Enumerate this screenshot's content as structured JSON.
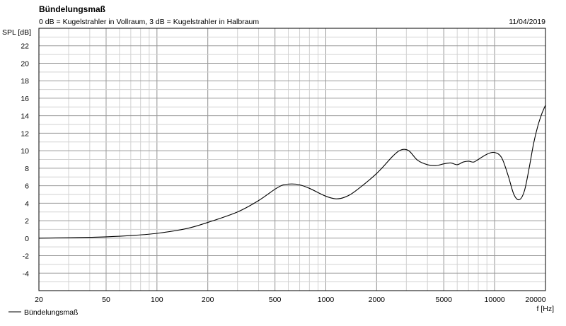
{
  "header": {
    "title": "Bündelungsmaß",
    "subtitle": "0 dB = Kugelstrahler in Vollraum, 3 dB = Kugelstrahler in Halbraum",
    "date": "11/04/2019"
  },
  "chart_data": {
    "type": "line",
    "title": "Bündelungsmaß",
    "subtitle": "0 dB = Kugelstrahler in Vollraum, 3 dB = Kugelstrahler in Halbraum",
    "xlabel": "f [Hz]",
    "ylabel": "SPL [dB]",
    "x_scale": "log",
    "xlim": [
      20,
      20000
    ],
    "ylim": [
      -6,
      24
    ],
    "x_ticks": [
      20,
      50,
      100,
      200,
      500,
      1000,
      2000,
      5000,
      10000,
      20000
    ],
    "x_tick_labels": [
      "20",
      "50",
      "100",
      "200",
      "500",
      "1000",
      "2000",
      "5000",
      "10000",
      "20000"
    ],
    "y_ticks": [
      -4,
      -2,
      0,
      2,
      4,
      6,
      8,
      10,
      12,
      14,
      16,
      18,
      20,
      22
    ],
    "y_tick_labels": [
      "-4",
      "-2",
      "0",
      "2",
      "4",
      "6",
      "8",
      "10",
      "12",
      "14",
      "16",
      "18",
      "20",
      "22"
    ],
    "grid": true,
    "legend_position": "bottom-left",
    "colors": {
      "line": "#000000",
      "grid_major": "#9a9a9a",
      "grid_minor": "#d2d2d2"
    },
    "series": [
      {
        "name": "Bündelungsmaß",
        "x": [
          20,
          30,
          40,
          50,
          70,
          100,
          150,
          200,
          300,
          400,
          500,
          560,
          630,
          700,
          800,
          1000,
          1150,
          1300,
          1500,
          2000,
          2500,
          2800,
          3100,
          3500,
          4000,
          4500,
          5000,
          5500,
          6000,
          6500,
          7000,
          7500,
          8000,
          9000,
          10000,
          11000,
          12000,
          13000,
          14000,
          15000,
          16000,
          17000,
          18000,
          19000,
          20000
        ],
        "y": [
          0,
          0.05,
          0.1,
          0.15,
          0.3,
          0.55,
          1.1,
          1.8,
          3.0,
          4.3,
          5.6,
          6.1,
          6.2,
          6.1,
          5.7,
          4.8,
          4.5,
          4.7,
          5.4,
          7.4,
          9.4,
          10.1,
          10.0,
          8.9,
          8.4,
          8.3,
          8.5,
          8.6,
          8.4,
          8.7,
          8.8,
          8.7,
          9.0,
          9.6,
          9.8,
          9.2,
          7.2,
          5.0,
          4.4,
          5.4,
          8.0,
          10.8,
          12.8,
          14.2,
          15.2
        ]
      }
    ]
  }
}
